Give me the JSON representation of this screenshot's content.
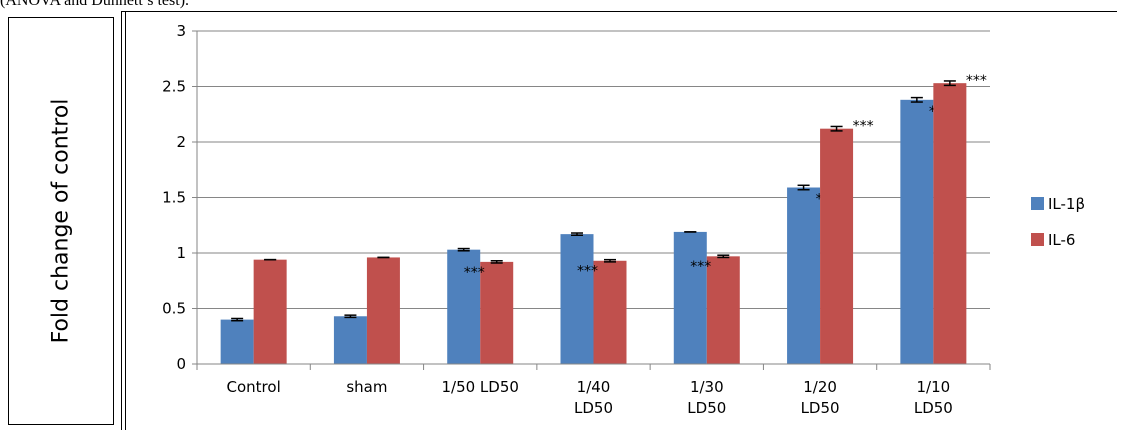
{
  "caption": "(ANOVA and Dunnett’s test).",
  "chart_data": {
    "type": "bar",
    "ylabel": "Fold change of control",
    "ylim": [
      0,
      3
    ],
    "yticks": [
      "0",
      "0.5",
      "1",
      "1.5",
      "2",
      "2.5",
      "3"
    ],
    "categories": [
      [
        "Control"
      ],
      [
        "sham"
      ],
      [
        "1/50 LD50"
      ],
      [
        "1/40",
        "LD50"
      ],
      [
        "1/30",
        "LD50"
      ],
      [
        "1/20",
        "LD50"
      ],
      [
        "1/10",
        "LD50"
      ]
    ],
    "series": [
      {
        "name": "IL-1β",
        "color": "#4f81bd",
        "values": [
          0.4,
          0.43,
          1.03,
          1.17,
          1.19,
          1.59,
          2.38
        ],
        "errors": [
          0.01,
          0.01,
          0.01,
          0.01,
          0.0,
          0.02,
          0.02
        ],
        "annotations": [
          "",
          "",
          "",
          "",
          "",
          "***",
          "***"
        ]
      },
      {
        "name": "IL-6",
        "color": "#c0504d",
        "values": [
          0.94,
          0.96,
          0.92,
          0.93,
          0.97,
          2.12,
          2.53
        ],
        "errors": [
          0.0,
          0.0,
          0.01,
          0.01,
          0.01,
          0.02,
          0.02
        ],
        "annotations": [
          "",
          "",
          "***",
          "***",
          "***",
          "***",
          "***"
        ]
      }
    ],
    "grid": true,
    "legend_position": "right"
  }
}
